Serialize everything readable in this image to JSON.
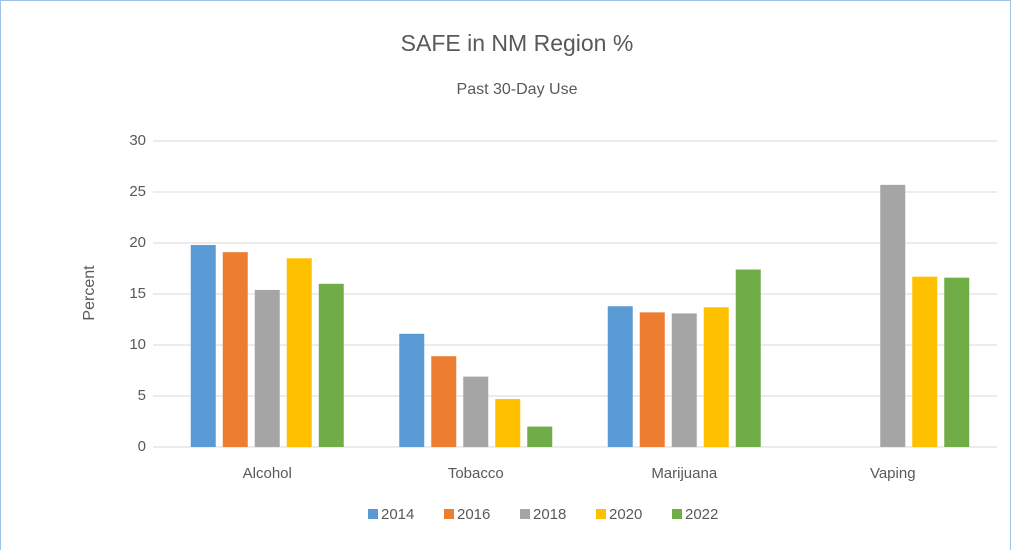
{
  "chart_data": {
    "type": "bar",
    "title": "SAFE in NM Region %",
    "subtitle": "Past 30-Day Use",
    "y_label": "Percent",
    "categories": [
      "Alcohol",
      "Tobacco",
      "Marijuana",
      "Vaping"
    ],
    "series": [
      {
        "name": "2014",
        "color": "#5b9bd5",
        "values": [
          19.8,
          11.1,
          13.8,
          null
        ]
      },
      {
        "name": "2016",
        "color": "#ed7d31",
        "values": [
          19.1,
          8.9,
          13.2,
          null
        ]
      },
      {
        "name": "2018",
        "color": "#a5a5a5",
        "values": [
          15.4,
          6.9,
          13.1,
          25.7
        ]
      },
      {
        "name": "2020",
        "color": "#ffc000",
        "values": [
          18.5,
          4.7,
          13.7,
          16.7
        ]
      },
      {
        "name": "2022",
        "color": "#70ad47",
        "values": [
          16.0,
          2.0,
          17.4,
          16.6
        ]
      }
    ],
    "ylim": [
      0,
      30
    ],
    "yticks": [
      0,
      5,
      10,
      15,
      20,
      25,
      30
    ],
    "grid": true,
    "legend": "bottom"
  }
}
